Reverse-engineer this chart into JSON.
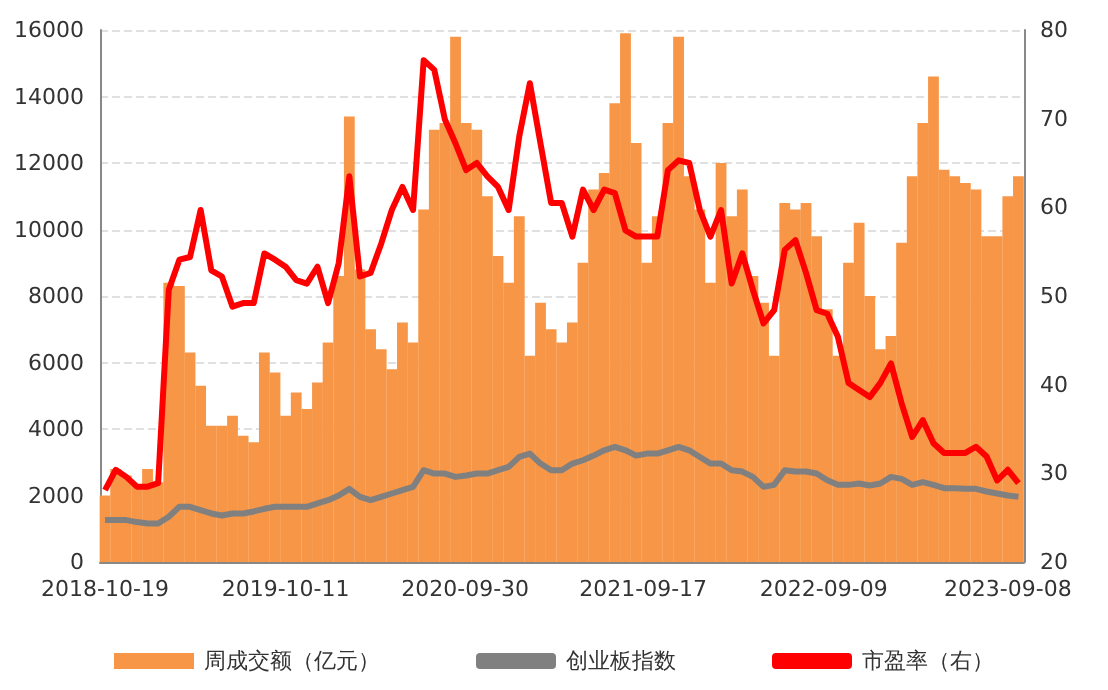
{
  "chart_data": {
    "type": "bar",
    "x": [
      "2018-10-19",
      "2018-11-09",
      "2018-11-30",
      "2018-12-21",
      "2019-01-11",
      "2019-02-01",
      "2019-02-22",
      "2019-03-15",
      "2019-04-05",
      "2019-04-26",
      "2019-05-17",
      "2019-06-07",
      "2019-06-28",
      "2019-07-19",
      "2019-08-09",
      "2019-08-30",
      "2019-09-20",
      "2019-10-11",
      "2019-11-01",
      "2019-11-22",
      "2019-12-13",
      "2020-01-03",
      "2020-01-24",
      "2020-02-14",
      "2020-03-06",
      "2020-03-27",
      "2020-04-17",
      "2020-05-08",
      "2020-05-29",
      "2020-06-19",
      "2020-07-10",
      "2020-07-31",
      "2020-08-21",
      "2020-09-11",
      "2020-10-02",
      "2020-10-23",
      "2020-11-13",
      "2020-12-04",
      "2020-12-25",
      "2021-01-15",
      "2021-02-05",
      "2021-02-26",
      "2021-03-19",
      "2021-04-09",
      "2021-04-30",
      "2021-05-21",
      "2021-06-11",
      "2021-07-02",
      "2021-07-23",
      "2021-08-13",
      "2021-09-03",
      "2021-09-24",
      "2021-10-15",
      "2021-11-05",
      "2021-11-26",
      "2021-12-17",
      "2022-01-07",
      "2022-01-28",
      "2022-02-18",
      "2022-03-11",
      "2022-04-01",
      "2022-04-22",
      "2022-05-13",
      "2022-06-03",
      "2022-06-24",
      "2022-07-15",
      "2022-08-05",
      "2022-08-26",
      "2022-09-16",
      "2022-10-07",
      "2022-10-28",
      "2022-11-18",
      "2022-12-09",
      "2022-12-30",
      "2023-01-20",
      "2023-02-10",
      "2023-03-03",
      "2023-03-24",
      "2023-04-14",
      "2023-05-05",
      "2023-05-26",
      "2023-06-16",
      "2023-07-07",
      "2023-07-28",
      "2023-08-18",
      "2023-09-08",
      "2023-09-29"
    ],
    "series": [
      {
        "name": "周成交额（亿元）",
        "color": "#f79646",
        "values": [
          2000,
          2800,
          2600,
          2300,
          2800,
          2400,
          8400,
          8300,
          6300,
          5300,
          4100,
          4100,
          4400,
          3800,
          3600,
          6300,
          5700,
          4400,
          5100,
          4600,
          5400,
          6600,
          8600,
          13400,
          8800,
          7000,
          6400,
          5800,
          7200,
          6600,
          10600,
          13000,
          13200,
          15800,
          13200,
          13000,
          11000,
          9200,
          8400,
          10400,
          6200,
          7800,
          7000,
          6600,
          7200,
          9000,
          11200,
          11700,
          13800,
          15900,
          12600,
          9000,
          10400,
          13200,
          15800,
          11600,
          10600,
          8400,
          12000,
          10400,
          11200,
          8600,
          7800,
          6200,
          10800,
          10600,
          10800,
          9800,
          7600,
          6200,
          9000,
          10200,
          8000,
          6400,
          6800,
          9600,
          11600,
          13200,
          14600,
          11800,
          11600,
          11400,
          11200,
          9800,
          9800,
          11000,
          11600
        ]
      },
      {
        "name": "创业板指数",
        "type": "line",
        "color": "#808080",
        "values": [
          1260,
          1260,
          1260,
          1200,
          1160,
          1160,
          1360,
          1660,
          1660,
          1560,
          1460,
          1400,
          1460,
          1460,
          1520,
          1600,
          1660,
          1660,
          1660,
          1660,
          1760,
          1860,
          2000,
          2200,
          1960,
          1860,
          1960,
          2060,
          2160,
          2260,
          2760,
          2660,
          2660,
          2560,
          2600,
          2660,
          2660,
          2760,
          2860,
          3160,
          3260,
          2960,
          2760,
          2760,
          2960,
          3060,
          3200,
          3360,
          3460,
          3360,
          3200,
          3260,
          3260,
          3360,
          3460,
          3360,
          3160,
          2960,
          2960,
          2760,
          2720,
          2560,
          2260,
          2320,
          2760,
          2720,
          2720,
          2660,
          2460,
          2320,
          2320,
          2360,
          2300,
          2360,
          2560,
          2500,
          2320,
          2400,
          2320,
          2220,
          2220,
          2200,
          2200,
          2120,
          2060,
          2000,
          1960
        ]
      },
      {
        "name": "市盈率（右）",
        "type": "line",
        "axis": "y2",
        "color": "#ff0000",
        "values": [
          28.1,
          30.4,
          29.6,
          28.5,
          28.5,
          28.9,
          50.7,
          54.1,
          54.4,
          59.7,
          52.9,
          52.2,
          48.8,
          49.2,
          49.2,
          54.8,
          54.1,
          53.3,
          51.8,
          51.4,
          53.3,
          49.2,
          53.7,
          63.5,
          52.2,
          52.6,
          55.9,
          59.7,
          62.3,
          59.7,
          76.6,
          75.5,
          69.9,
          67.2,
          64.2,
          65.0,
          63.5,
          62.3,
          59.7,
          68.0,
          74.0,
          67.2,
          60.5,
          60.5,
          56.7,
          62.0,
          59.7,
          62.0,
          61.6,
          57.4,
          56.7,
          56.7,
          56.7,
          64.2,
          65.3,
          65.0,
          59.7,
          56.7,
          59.7,
          51.4,
          54.8,
          50.7,
          46.9,
          48.4,
          55.2,
          56.3,
          52.6,
          48.4,
          48.0,
          45.4,
          40.2,
          39.4,
          38.6,
          40.2,
          42.4,
          37.9,
          34.1,
          36.0,
          33.4,
          32.3,
          32.3,
          32.3,
          33.0,
          31.9,
          29.2,
          30.4,
          28.9
        ]
      }
    ],
    "xlim": [
      "2018-10-09",
      "2023-10-10"
    ],
    "xticks": [
      "2018-10-19",
      "2019-10-11",
      "2020-09-30",
      "2021-09-17",
      "2022-09-09",
      "2023-09-08"
    ],
    "ylim": [
      0,
      16000
    ],
    "yticks": [
      0,
      2000,
      4000,
      6000,
      8000,
      10000,
      12000,
      14000,
      16000
    ],
    "y2lim": [
      20,
      80
    ],
    "y2ticks": [
      20,
      30,
      40,
      50,
      60,
      70,
      80
    ],
    "grid": "y",
    "legend": "bottom",
    "marker": "none"
  }
}
